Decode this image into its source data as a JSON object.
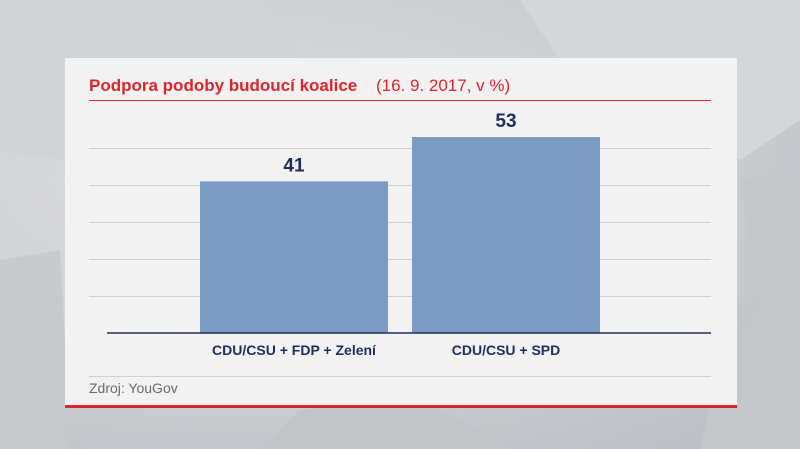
{
  "chart_data": {
    "type": "bar",
    "title": "Podpora podoby budoucí koalice",
    "subtitle": "(16. 9. 2017, v %)",
    "categories": [
      "CDU/CSU + FDP + Zelení",
      "CDU/CSU + SPD"
    ],
    "values": [
      41,
      53
    ],
    "ylim": [
      0,
      60
    ],
    "grid": true,
    "bar_color": "#7b9cc2",
    "label_color": "#1f2d5a"
  },
  "source": "Zdroj: YouGov",
  "colors": {
    "accent": "#e0242b",
    "card": "#f2f2f3"
  }
}
